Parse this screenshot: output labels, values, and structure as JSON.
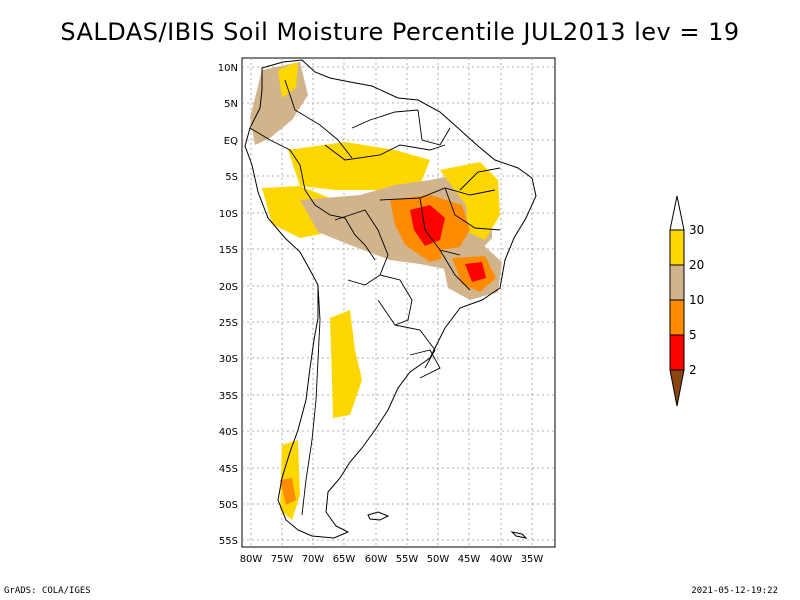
{
  "title": "SALDAS/IBIS Soil Moisture Percentile JUL2013 lev = 19",
  "footer": {
    "left": "GrADS: COLA/IGES",
    "right": "2021-05-12-19:22"
  },
  "axes": {
    "lat_labels": [
      "10N",
      "5N",
      "EQ",
      "5S",
      "10S",
      "15S",
      "20S",
      "25S",
      "30S",
      "35S",
      "40S",
      "45S",
      "50S",
      "55S"
    ],
    "lon_labels": [
      "80W",
      "75W",
      "70W",
      "65W",
      "60W",
      "55W",
      "50W",
      "45W",
      "40W",
      "35W"
    ]
  },
  "legend": {
    "labels": [
      "30",
      "20",
      "10",
      "5",
      "2"
    ],
    "colors": {
      "above30": "#ffffff",
      "p20_30": "#ffd700",
      "p10_20": "#d2b48c",
      "p5_10": "#ff8c00",
      "p2_5": "#ff0000",
      "below2": "#8b4513"
    }
  }
}
